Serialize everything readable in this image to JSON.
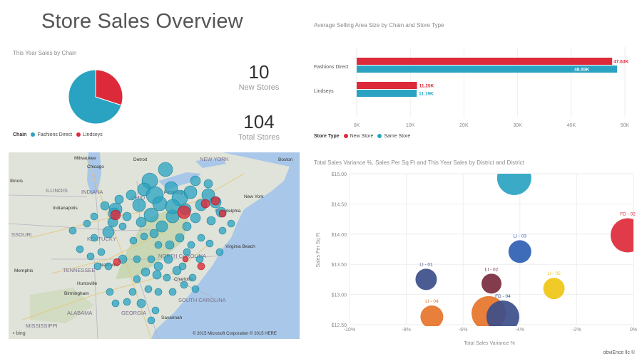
{
  "dashboard": {
    "title": "Store Sales Overview",
    "footer": "obviEnce llc ©"
  },
  "colors": {
    "teal": "#2aa3c2",
    "red": "#dd2a3a",
    "navy": "#3c4e8a",
    "orange": "#e6742a",
    "yellow": "#efc615",
    "plum": "#7a2b3d",
    "blue": "#2f5fb3"
  },
  "kpis": [
    {
      "value": "10",
      "label": "New Stores"
    },
    {
      "value": "104",
      "label": "Total Stores"
    }
  ],
  "pie": {
    "title": "This Year Sales by Chain",
    "legend_title": "Chain",
    "legend": [
      "Fashions Direct",
      "Lindseys"
    ]
  },
  "bar": {
    "title": "Average Selling Area Size by Chain and Store Type",
    "legend_title": "Store Type",
    "legend": [
      "New Store",
      "Same Store"
    ],
    "x_ticks": [
      "0K",
      "10K",
      "20K",
      "30K",
      "40K",
      "50K"
    ]
  },
  "map": {
    "labels": [
      "Milwaukee",
      "Detroit",
      "NEW YORK",
      "Boston",
      "Chicago",
      "Illinois",
      "ILLINOIS",
      "INDIANA",
      "OHIO",
      "New York",
      "Indianapolis",
      "Philadelphia",
      "Pittsburgh",
      "SSOURI",
      "KENTUCKY",
      "Virginia Beach",
      "Memphis",
      "TENNESSEE",
      "Nashville",
      "NORTH CAROLINA",
      "Charlotte",
      "Huntsville",
      "Birmingham",
      "SOUTH CAROLINA",
      "ALABAMA",
      "GEORGIA",
      "MISSISSIPPI",
      "Savannah"
    ],
    "copyright": "© 2015 Microsoft Corporation   © 2015 HERE"
  },
  "scatter": {
    "title": "Total Sales Variance %, Sales Per Sq Ft and This Year Sales by District and District",
    "x_label": "Total Sales Variance %",
    "y_label": "Sales Per Sq Ft",
    "x_ticks": [
      "-10%",
      "-8%",
      "-6%",
      "-4%",
      "-2%",
      "0%"
    ],
    "y_ticks": [
      "$15.00",
      "$14.50",
      "$14.00",
      "$13.50",
      "$13.00",
      "$12.50"
    ]
  },
  "chart_data": [
    {
      "type": "pie",
      "title": "This Year Sales by Chain",
      "categories": [
        "Fashions Direct",
        "Lindseys"
      ],
      "values": [
        70,
        30
      ],
      "colors": [
        "#2aa3c2",
        "#dd2a3a"
      ],
      "legend_position": "bottom"
    },
    {
      "type": "bar",
      "orientation": "horizontal",
      "title": "Average Selling Area Size by Chain and Store Type",
      "categories": [
        "Fashions Direct",
        "Lindseys"
      ],
      "series": [
        {
          "name": "New Store",
          "values": [
            47630,
            11250
          ],
          "labels": [
            "47.63K",
            "11.25K"
          ],
          "color": "#dd2a3a"
        },
        {
          "name": "Same Store",
          "values": [
            48550,
            11190
          ],
          "labels": [
            "48.55K",
            "11.19K"
          ],
          "color": "#2aa3c2"
        }
      ],
      "xlim": [
        0,
        50000
      ],
      "legend_position": "bottom-left"
    },
    {
      "type": "scatter",
      "title": "Total Sales Variance %, Sales Per Sq Ft and This Year Sales by District and District",
      "xlabel": "Total Sales Variance %",
      "ylabel": "Sales Per Sq Ft",
      "xlim": [
        -10,
        0
      ],
      "ylim": [
        12.5,
        15.0
      ],
      "points": [
        {
          "label": "",
          "x": -4.2,
          "y": 14.93,
          "size": 24,
          "color": "#2aa3c2"
        },
        {
          "label": "FD - 02",
          "x": -0.2,
          "y": 13.98,
          "size": 24,
          "color": "#dd2a3a"
        },
        {
          "label": "LI - 03",
          "x": -4.0,
          "y": 13.71,
          "size": 16,
          "color": "#2f5fb3"
        },
        {
          "label": "LI - 01",
          "x": -7.3,
          "y": 13.25,
          "size": 15,
          "color": "#3c4e8a"
        },
        {
          "label": "LI - 02",
          "x": -5.0,
          "y": 13.18,
          "size": 14,
          "color": "#7a2b3d"
        },
        {
          "label": "LI - 05",
          "x": -2.8,
          "y": 13.1,
          "size": 15,
          "color": "#efc615"
        },
        {
          "label": "LI - 04",
          "x": -7.1,
          "y": 12.63,
          "size": 16,
          "color": "#e6742a"
        },
        {
          "label": "",
          "x": -5.1,
          "y": 12.69,
          "size": 24,
          "color": "#e6742a"
        },
        {
          "label": "FD - 04",
          "x": -4.6,
          "y": 12.63,
          "size": 23,
          "color": "#3c4e8a"
        }
      ]
    }
  ]
}
